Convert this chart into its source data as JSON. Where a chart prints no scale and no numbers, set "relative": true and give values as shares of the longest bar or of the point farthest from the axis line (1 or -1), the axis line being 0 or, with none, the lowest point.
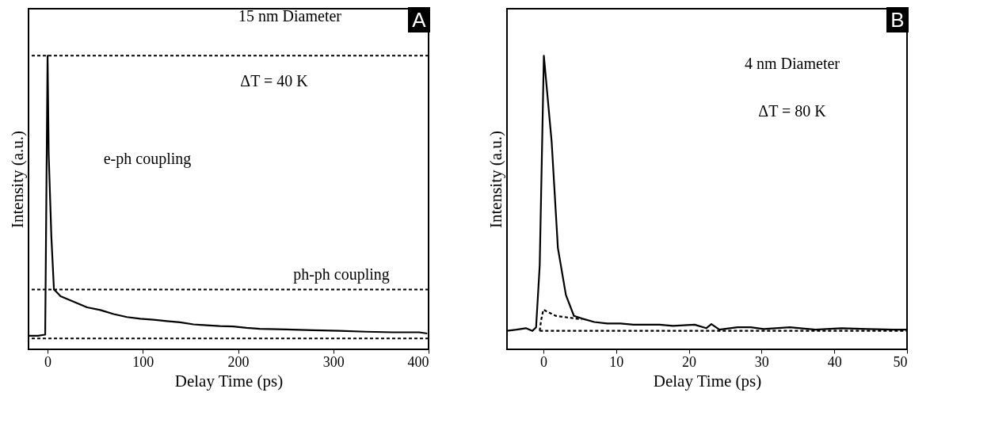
{
  "chart_data": [
    {
      "type": "line",
      "relative": true,
      "xlabel": "Delay Time (ps)",
      "ylabel": "Intensity (a.u.)",
      "xlim": [
        -20,
        400
      ],
      "xticks": [
        0,
        100,
        200,
        300,
        400
      ],
      "grid": false,
      "line_style": "solid",
      "annotations": [
        "A",
        "15 nm Diameter",
        "ΔT = 40 K",
        "e-ph coupling",
        "ph-ph coupling"
      ],
      "ref_lines": [
        {
          "axis": "y",
          "value": 1.0,
          "color": "#000000",
          "line_style": "dashed"
        },
        {
          "axis": "y",
          "value": 0.204,
          "color": "#000000",
          "line_style": "dashed"
        },
        {
          "axis": "y",
          "value": 0.037,
          "color": "#000000",
          "line_style": "dashed"
        }
      ],
      "series": [
        {
          "color": "#000000",
          "x": [
            -20,
            -10,
            -3,
            -2.5,
            0,
            1.2,
            4.0,
            6.7,
            9.5,
            13.7,
            27.6,
            41.5,
            55.4,
            69.4,
            83.3,
            97.3,
            111.2,
            125.2,
            139.1,
            153.1,
            167,
            181,
            194.9,
            208.9,
            222.8,
            250.7,
            278.6,
            306.5,
            334.4,
            362.3,
            390.2,
            398.6
          ],
          "values": [
            0.046,
            0.046,
            0.05,
            0.05,
            1.0,
            0.663,
            0.382,
            0.204,
            0.195,
            0.181,
            0.162,
            0.143,
            0.134,
            0.12,
            0.11,
            0.104,
            0.101,
            0.096,
            0.092,
            0.085,
            0.082,
            0.079,
            0.078,
            0.073,
            0.07,
            0.068,
            0.065,
            0.063,
            0.06,
            0.058,
            0.058,
            0.054
          ]
        }
      ]
    },
    {
      "type": "line",
      "relative": true,
      "xlabel": "Delay Time (ps)",
      "ylabel": "Intensity (a.u.)",
      "xlim": [
        -5,
        50
      ],
      "xticks": [
        0,
        10,
        20,
        30,
        40,
        50
      ],
      "grid": false,
      "annotations": [
        "B",
        "4 nm Diameter",
        "ΔT = 80 K"
      ],
      "series": [
        {
          "color": "#000000",
          "line_style": "solid",
          "x": [
            -5,
            -3.7,
            -2.4,
            -1.5,
            -1.0,
            -0.5,
            0.07,
            1.14,
            2.0,
            3.1,
            4.2,
            5.3,
            7.0,
            8.8,
            10.6,
            12.4,
            16.0,
            17.8,
            20.8,
            22.4,
            23.1,
            24.2,
            26.7,
            28.5,
            30.3,
            33.9,
            37.4,
            41.0,
            44.6,
            48.2,
            50
          ],
          "values": [
            0.063,
            0.067,
            0.072,
            0.063,
            0.075,
            0.286,
            1.0,
            0.707,
            0.345,
            0.185,
            0.114,
            0.105,
            0.093,
            0.088,
            0.088,
            0.084,
            0.084,
            0.08,
            0.084,
            0.072,
            0.086,
            0.067,
            0.075,
            0.075,
            0.069,
            0.075,
            0.067,
            0.072,
            0.069,
            0.067,
            0.067
          ]
        },
        {
          "color": "#000000",
          "line_style": "dashed",
          "x": [
            -0.5,
            -0.3,
            0.0,
            1.7,
            5.3
          ],
          "values": [
            0.063,
            0.1,
            0.135,
            0.114,
            0.102
          ]
        },
        {
          "color": "#000000",
          "line_style": "dashed",
          "x": [
            -0.5,
            50
          ],
          "values": [
            0.063,
            0.063
          ]
        }
      ]
    }
  ]
}
